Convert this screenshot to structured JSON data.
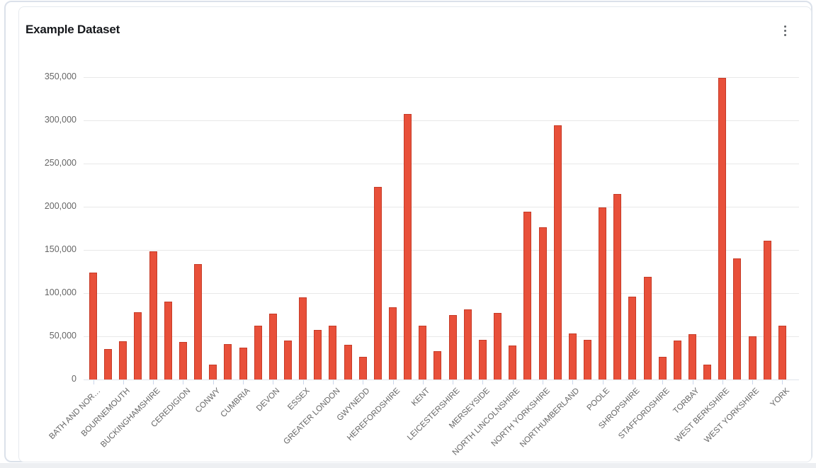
{
  "card": {
    "title": "Example Dataset",
    "menu_icon": "kebab-vertical-icon"
  },
  "chart_data": {
    "type": "bar",
    "title": "Example Dataset",
    "orientation": "vertical-columns",
    "grid": true,
    "legend": "none",
    "bar_color": "#e8503a",
    "bar_border_color": "#c63b27",
    "ylim": [
      0,
      350000
    ],
    "y_tick_labels": [
      "0",
      "50,000",
      "100,000",
      "150,000",
      "200,000",
      "250,000",
      "300,000",
      "350,000"
    ],
    "x_label_rotation_degrees": -45,
    "x_labels_shown_every_n_bars": 2,
    "bars": [
      {
        "label": "BATH AND NOR…",
        "value": 124000
      },
      {
        "label": "",
        "value": 35000
      },
      {
        "label": "BOURNEMOUTH",
        "value": 44500
      },
      {
        "label": "",
        "value": 78000
      },
      {
        "label": "BUCKINGHAMSHIRE",
        "value": 148000
      },
      {
        "label": "",
        "value": 90500
      },
      {
        "label": "CEREDIGION",
        "value": 43500
      },
      {
        "label": "",
        "value": 134000
      },
      {
        "label": "CONWY",
        "value": 17500
      },
      {
        "label": "",
        "value": 41000
      },
      {
        "label": "CUMBRIA",
        "value": 36500
      },
      {
        "label": "",
        "value": 62500
      },
      {
        "label": "DEVON",
        "value": 76000
      },
      {
        "label": "",
        "value": 45000
      },
      {
        "label": "ESSEX",
        "value": 95000
      },
      {
        "label": "",
        "value": 57000
      },
      {
        "label": "GREATER LONDON",
        "value": 62000
      },
      {
        "label": "",
        "value": 40000
      },
      {
        "label": "GWYNEDD",
        "value": 26500
      },
      {
        "label": "",
        "value": 223000
      },
      {
        "label": "HEREFORDSHIRE",
        "value": 83500
      },
      {
        "label": "",
        "value": 307000
      },
      {
        "label": "KENT",
        "value": 62000
      },
      {
        "label": "",
        "value": 33000
      },
      {
        "label": "LEICESTERSHIRE",
        "value": 74500
      },
      {
        "label": "",
        "value": 81000
      },
      {
        "label": "MERSEYSIDE",
        "value": 45500
      },
      {
        "label": "",
        "value": 77000
      },
      {
        "label": "NORTH LINCOLNSHIRE",
        "value": 39000
      },
      {
        "label": "",
        "value": 194500
      },
      {
        "label": "NORTH YORKSHIRE",
        "value": 176000
      },
      {
        "label": "",
        "value": 294000
      },
      {
        "label": "NORTHUMBERLAND",
        "value": 53000
      },
      {
        "label": "",
        "value": 45500
      },
      {
        "label": "POOLE",
        "value": 199000
      },
      {
        "label": "",
        "value": 215000
      },
      {
        "label": "SHROPSHIRE",
        "value": 95500
      },
      {
        "label": "",
        "value": 118500
      },
      {
        "label": "STAFFORDSHIRE",
        "value": 26000
      },
      {
        "label": "",
        "value": 45000
      },
      {
        "label": "TORBAY",
        "value": 52500
      },
      {
        "label": "",
        "value": 17000
      },
      {
        "label": "WEST BERKSHIRE",
        "value": 349500
      },
      {
        "label": "",
        "value": 140500
      },
      {
        "label": "WEST YORKSHIRE",
        "value": 50000
      },
      {
        "label": "",
        "value": 161000
      },
      {
        "label": "YORK",
        "value": 62000
      }
    ]
  }
}
